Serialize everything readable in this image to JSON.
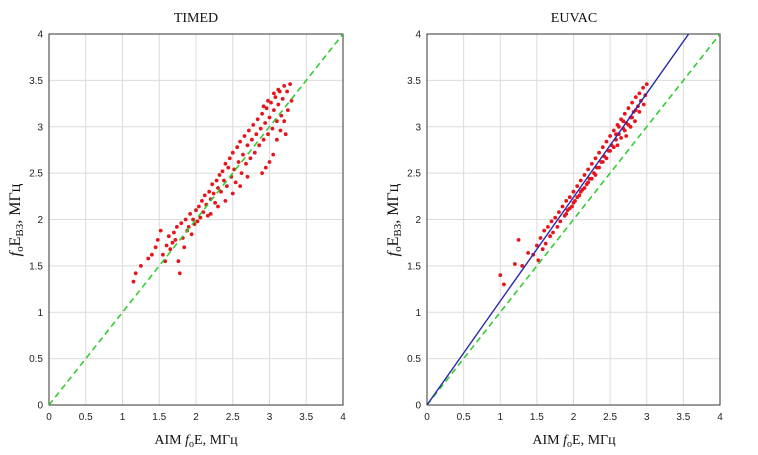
{
  "chart_data": [
    {
      "type": "scatter",
      "title": "TIMED",
      "xlabel": {
        "pre": "AIM ",
        "f": "f",
        "sub": "o",
        "post": "E, МГц"
      },
      "ylabel": {
        "f": "f",
        "sub1": "o",
        "E": "E",
        "sub2": "ВЗ",
        "post": ", МГц"
      },
      "xlim": [
        0,
        4
      ],
      "ylim": [
        0,
        4
      ],
      "xticks": [
        "0",
        "0.5",
        "1",
        "1.5",
        "2",
        "2.5",
        "3",
        "3.5",
        "4"
      ],
      "yticks": [
        "0",
        "0.5",
        "1",
        "1.5",
        "2",
        "2.5",
        "3",
        "3.5",
        "4"
      ],
      "grid": true,
      "point_color": "#e8141b",
      "reference_line": {
        "slope": 1,
        "intercept": 0,
        "color": "#33cc33",
        "style": "dashed"
      },
      "fit_line": null,
      "series": [
        {
          "values": [
            [
              1.15,
              1.33
            ],
            [
              1.18,
              1.42
            ],
            [
              1.25,
              1.5
            ],
            [
              1.35,
              1.58
            ],
            [
              1.4,
              1.62
            ],
            [
              1.45,
              1.7
            ],
            [
              1.48,
              1.78
            ],
            [
              1.52,
              1.88
            ],
            [
              1.55,
              1.62
            ],
            [
              1.58,
              1.55
            ],
            [
              1.6,
              1.72
            ],
            [
              1.63,
              1.82
            ],
            [
              1.65,
              1.68
            ],
            [
              1.68,
              1.75
            ],
            [
              1.7,
              1.86
            ],
            [
              1.72,
              1.78
            ],
            [
              1.74,
              1.92
            ],
            [
              1.76,
              1.55
            ],
            [
              1.78,
              1.42
            ],
            [
              1.8,
              1.96
            ],
            [
              1.82,
              1.8
            ],
            [
              1.84,
              1.7
            ],
            [
              1.86,
              2.0
            ],
            [
              1.88,
              1.88
            ],
            [
              1.9,
              1.92
            ],
            [
              1.92,
              2.06
            ],
            [
              1.94,
              1.84
            ],
            [
              1.96,
              2.0
            ],
            [
              1.98,
              1.95
            ],
            [
              2.0,
              2.1
            ],
            [
              2.02,
              1.98
            ],
            [
              2.04,
              2.14
            ],
            [
              2.06,
              2.02
            ],
            [
              2.08,
              2.2
            ],
            [
              2.1,
              2.08
            ],
            [
              2.12,
              2.26
            ],
            [
              2.14,
              2.16
            ],
            [
              2.16,
              2.04
            ],
            [
              2.18,
              2.3
            ],
            [
              2.2,
              2.22
            ],
            [
              2.22,
              2.38
            ],
            [
              2.24,
              2.28
            ],
            [
              2.26,
              2.18
            ],
            [
              2.28,
              2.42
            ],
            [
              2.3,
              2.34
            ],
            [
              2.32,
              2.48
            ],
            [
              2.34,
              2.3
            ],
            [
              2.36,
              2.52
            ],
            [
              2.38,
              2.42
            ],
            [
              2.4,
              2.6
            ],
            [
              2.42,
              2.36
            ],
            [
              2.44,
              2.56
            ],
            [
              2.46,
              2.66
            ],
            [
              2.48,
              2.46
            ],
            [
              2.5,
              2.72
            ],
            [
              2.52,
              2.54
            ],
            [
              2.54,
              2.4
            ],
            [
              2.56,
              2.78
            ],
            [
              2.58,
              2.62
            ],
            [
              2.6,
              2.84
            ],
            [
              2.62,
              2.5
            ],
            [
              2.64,
              2.7
            ],
            [
              2.66,
              2.9
            ],
            [
              2.68,
              2.6
            ],
            [
              2.7,
              2.8
            ],
            [
              2.72,
              2.96
            ],
            [
              2.74,
              2.66
            ],
            [
              2.76,
              2.86
            ],
            [
              2.78,
              3.02
            ],
            [
              2.8,
              2.72
            ],
            [
              2.82,
              2.92
            ],
            [
              2.84,
              3.08
            ],
            [
              2.86,
              2.8
            ],
            [
              2.88,
              2.98
            ],
            [
              2.9,
              3.14
            ],
            [
              2.92,
              2.86
            ],
            [
              2.94,
              3.04
            ],
            [
              2.96,
              3.2
            ],
            [
              2.98,
              2.92
            ],
            [
              3.0,
              3.1
            ],
            [
              3.02,
              3.26
            ],
            [
              3.04,
              2.98
            ],
            [
              3.06,
              3.18
            ],
            [
              3.08,
              3.32
            ],
            [
              3.1,
              3.06
            ],
            [
              3.12,
              3.24
            ],
            [
              3.14,
              3.38
            ],
            [
              3.16,
              3.12
            ],
            [
              3.18,
              3.3
            ],
            [
              3.2,
              3.44
            ],
            [
              3.05,
              2.7
            ],
            [
              3.0,
              2.62
            ],
            [
              2.95,
              2.56
            ],
            [
              2.9,
              2.5
            ],
            [
              3.1,
              2.86
            ],
            [
              3.15,
              2.96
            ],
            [
              3.2,
              3.06
            ],
            [
              3.25,
              3.18
            ],
            [
              3.3,
              3.28
            ],
            [
              3.22,
              2.92
            ],
            [
              2.7,
              2.46
            ],
            [
              2.6,
              2.36
            ],
            [
              2.5,
              2.28
            ],
            [
              2.4,
              2.2
            ],
            [
              2.3,
              2.14
            ],
            [
              2.2,
              2.06
            ],
            [
              3.28,
              3.46
            ],
            [
              3.24,
              3.38
            ],
            [
              3.12,
              3.4
            ],
            [
              3.06,
              3.36
            ],
            [
              2.98,
              3.28
            ],
            [
              2.92,
              3.22
            ]
          ]
        }
      ]
    },
    {
      "type": "scatter",
      "title": "EUVAC",
      "xlabel": {
        "pre": "AIM ",
        "f": "f",
        "sub": "o",
        "post": "E, МГц"
      },
      "ylabel": {
        "f": "f",
        "sub1": "o",
        "E": "E",
        "sub2": "ВЗ",
        "post": ", МГц"
      },
      "xlim": [
        0,
        4
      ],
      "ylim": [
        0,
        4
      ],
      "xticks": [
        "0",
        "0.5",
        "1",
        "1.5",
        "2",
        "2.5",
        "3",
        "3.5",
        "4"
      ],
      "yticks": [
        "0",
        "0.5",
        "1",
        "1.5",
        "2",
        "2.5",
        "3",
        "3.5",
        "4"
      ],
      "grid": true,
      "point_color": "#e8141b",
      "reference_line": {
        "slope": 1,
        "intercept": 0,
        "color": "#33cc33",
        "style": "dashed"
      },
      "fit_line": {
        "slope": 1.12,
        "intercept": 0,
        "color": "#2a2aa8",
        "style": "solid"
      },
      "series": [
        {
          "values": [
            [
              1.0,
              1.4
            ],
            [
              1.05,
              1.3
            ],
            [
              1.2,
              1.52
            ],
            [
              1.25,
              1.78
            ],
            [
              1.3,
              1.5
            ],
            [
              1.38,
              1.64
            ],
            [
              1.45,
              1.62
            ],
            [
              1.5,
              1.72
            ],
            [
              1.52,
              1.56
            ],
            [
              1.55,
              1.8
            ],
            [
              1.58,
              1.68
            ],
            [
              1.6,
              1.88
            ],
            [
              1.62,
              1.74
            ],
            [
              1.65,
              1.92
            ],
            [
              1.68,
              1.82
            ],
            [
              1.7,
              1.98
            ],
            [
              1.72,
              1.86
            ],
            [
              1.75,
              2.02
            ],
            [
              1.78,
              1.92
            ],
            [
              1.8,
              2.08
            ],
            [
              1.82,
              1.98
            ],
            [
              1.85,
              2.14
            ],
            [
              1.88,
              2.04
            ],
            [
              1.9,
              2.2
            ],
            [
              1.92,
              2.1
            ],
            [
              1.95,
              2.24
            ],
            [
              1.98,
              2.14
            ],
            [
              2.0,
              2.3
            ],
            [
              2.02,
              2.2
            ],
            [
              2.05,
              2.36
            ],
            [
              2.08,
              2.26
            ],
            [
              2.1,
              2.42
            ],
            [
              2.12,
              2.32
            ],
            [
              2.15,
              2.48
            ],
            [
              2.18,
              2.38
            ],
            [
              2.2,
              2.54
            ],
            [
              2.22,
              2.44
            ],
            [
              2.25,
              2.6
            ],
            [
              2.28,
              2.5
            ],
            [
              2.3,
              2.66
            ],
            [
              2.32,
              2.56
            ],
            [
              2.35,
              2.72
            ],
            [
              2.38,
              2.62
            ],
            [
              2.4,
              2.78
            ],
            [
              2.42,
              2.68
            ],
            [
              2.45,
              2.84
            ],
            [
              2.48,
              2.74
            ],
            [
              2.5,
              2.9
            ],
            [
              2.52,
              2.8
            ],
            [
              2.55,
              2.96
            ],
            [
              2.58,
              2.86
            ],
            [
              2.6,
              3.02
            ],
            [
              2.62,
              2.92
            ],
            [
              2.65,
              3.08
            ],
            [
              2.68,
              2.98
            ],
            [
              2.7,
              3.14
            ],
            [
              2.72,
              3.04
            ],
            [
              2.75,
              3.2
            ],
            [
              2.78,
              3.1
            ],
            [
              2.8,
              3.26
            ],
            [
              2.82,
              3.16
            ],
            [
              2.85,
              3.32
            ],
            [
              2.88,
              3.22
            ],
            [
              2.9,
              3.36
            ],
            [
              2.92,
              3.28
            ],
            [
              2.95,
              3.42
            ],
            [
              2.98,
              3.34
            ],
            [
              3.0,
              3.46
            ],
            [
              2.6,
              2.8
            ],
            [
              2.55,
              2.78
            ],
            [
              2.5,
              2.74
            ],
            [
              2.45,
              2.66
            ],
            [
              2.4,
              2.62
            ],
            [
              2.35,
              2.56
            ],
            [
              2.7,
              2.96
            ],
            [
              2.75,
              3.02
            ],
            [
              2.8,
              3.1
            ],
            [
              2.85,
              3.18
            ],
            [
              2.65,
              2.88
            ],
            [
              2.58,
              2.92
            ],
            [
              2.62,
              3.0
            ],
            [
              2.68,
              3.06
            ],
            [
              2.72,
              2.9
            ],
            [
              2.78,
              3.0
            ],
            [
              2.84,
              3.06
            ],
            [
              2.9,
              3.16
            ],
            [
              2.96,
              3.24
            ],
            [
              2.3,
              2.48
            ],
            [
              2.25,
              2.44
            ],
            [
              2.2,
              2.4
            ],
            [
              2.15,
              2.34
            ],
            [
              2.1,
              2.3
            ],
            [
              2.05,
              2.24
            ],
            [
              2.0,
              2.18
            ],
            [
              1.95,
              2.12
            ],
            [
              1.9,
              2.06
            ]
          ]
        }
      ]
    }
  ]
}
